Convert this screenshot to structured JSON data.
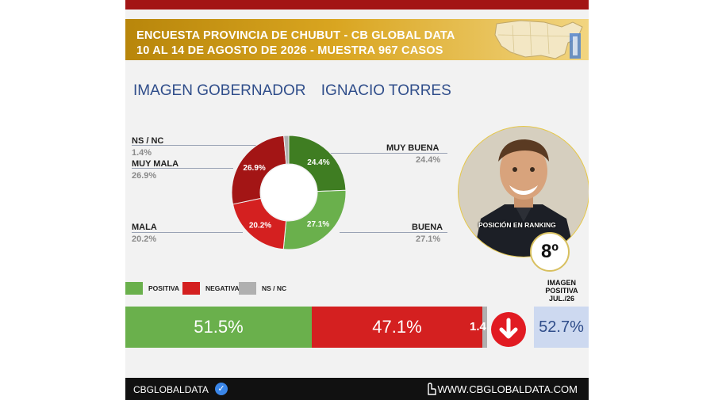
{
  "header": {
    "line1": "ENCUESTA PROVINCIA DE CHUBUT - CB GLOBAL DATA",
    "line2": "10 AL 14 DE AGOSTO DE 2026 - MUESTRA 967 CASOS"
  },
  "title_left": "IMAGEN GOBERNADOR",
  "title_right": "IGNACIO TORRES",
  "chart_data": {
    "type": "pie",
    "donut": true,
    "categories": [
      "MUY BUENA",
      "BUENA",
      "MALA",
      "MUY MALA",
      "NS / NC"
    ],
    "values": [
      24.4,
      27.1,
      20.2,
      26.9,
      1.4
    ],
    "slice_labels": [
      "24.4%",
      "27.1%",
      "20.2%",
      "26.9%",
      ""
    ],
    "outside_labels": [
      {
        "name": "MUY BUENA",
        "value": "24.4%"
      },
      {
        "name": "BUENA",
        "value": "27.1%"
      },
      {
        "name": "MALA",
        "value": "20.2%"
      },
      {
        "name": "MUY MALA",
        "value": "26.9%"
      },
      {
        "name": "NS / NC",
        "value": "1.4%"
      }
    ],
    "colors": [
      "#3f7d22",
      "#6ab04c",
      "#d42020",
      "#a31515",
      "#b0b0b0"
    ],
    "legend": [
      {
        "label": "POSITIVA",
        "color": "#6ab04c"
      },
      {
        "label": "NEGATIVA",
        "color": "#d42020"
      },
      {
        "label": "NS / NC",
        "color": "#b0b0b0"
      }
    ],
    "summary_bar": {
      "values": [
        51.5,
        47.1,
        1.4
      ],
      "labels": [
        "51.5%",
        "47.1%",
        "1.4"
      ],
      "colors": [
        "#6ab04c",
        "#d42020",
        "#b0b0b0"
      ]
    }
  },
  "ranking": {
    "label": "POSICIÓN EN RANKING",
    "value": "8º"
  },
  "previous": {
    "line1": "IMAGEN",
    "line2": "POSITIVA",
    "line3": "JUL./26",
    "value": "52.7%"
  },
  "footer": {
    "left": "CBGLOBALDATA",
    "right": "WWW.CBGLOBALDATA.COM"
  }
}
